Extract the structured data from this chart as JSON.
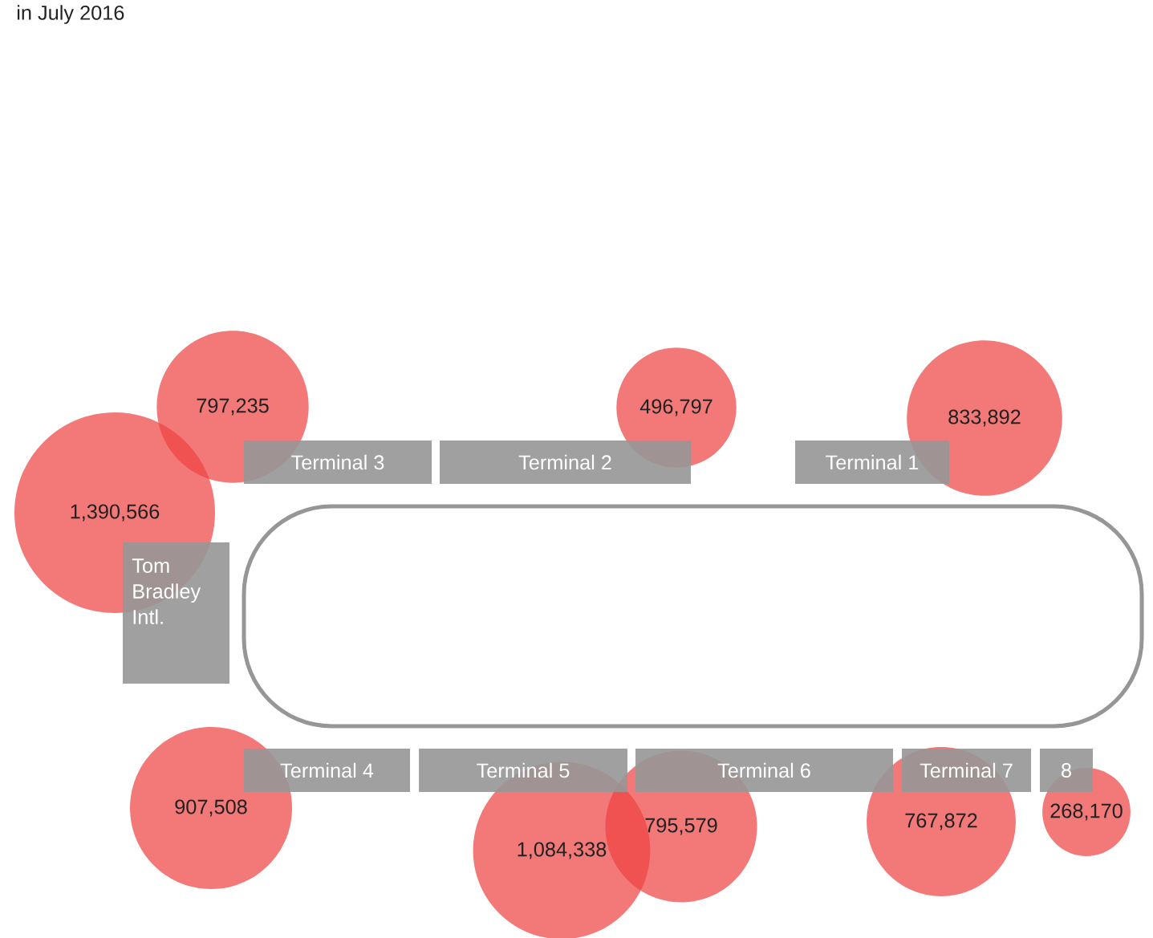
{
  "chart_data": {
    "type": "other",
    "title": "in July 2016",
    "categories": [
      "Terminal 3",
      "Terminal 2",
      "Terminal 1",
      "Tom Bradley Intl.",
      "Terminal 4",
      "Terminal 5",
      "Terminal 6",
      "Terminal 7",
      "8"
    ],
    "values": [
      797235,
      496797,
      833892,
      1390566,
      907508,
      1084338,
      795579,
      767872,
      268170
    ],
    "value_labels": [
      "797,235",
      "496,797",
      "833,892",
      "1,390,566",
      "907,508",
      "1,084,338",
      "795,579",
      "767,872",
      "268,170"
    ],
    "color": "#ee4444"
  }
}
